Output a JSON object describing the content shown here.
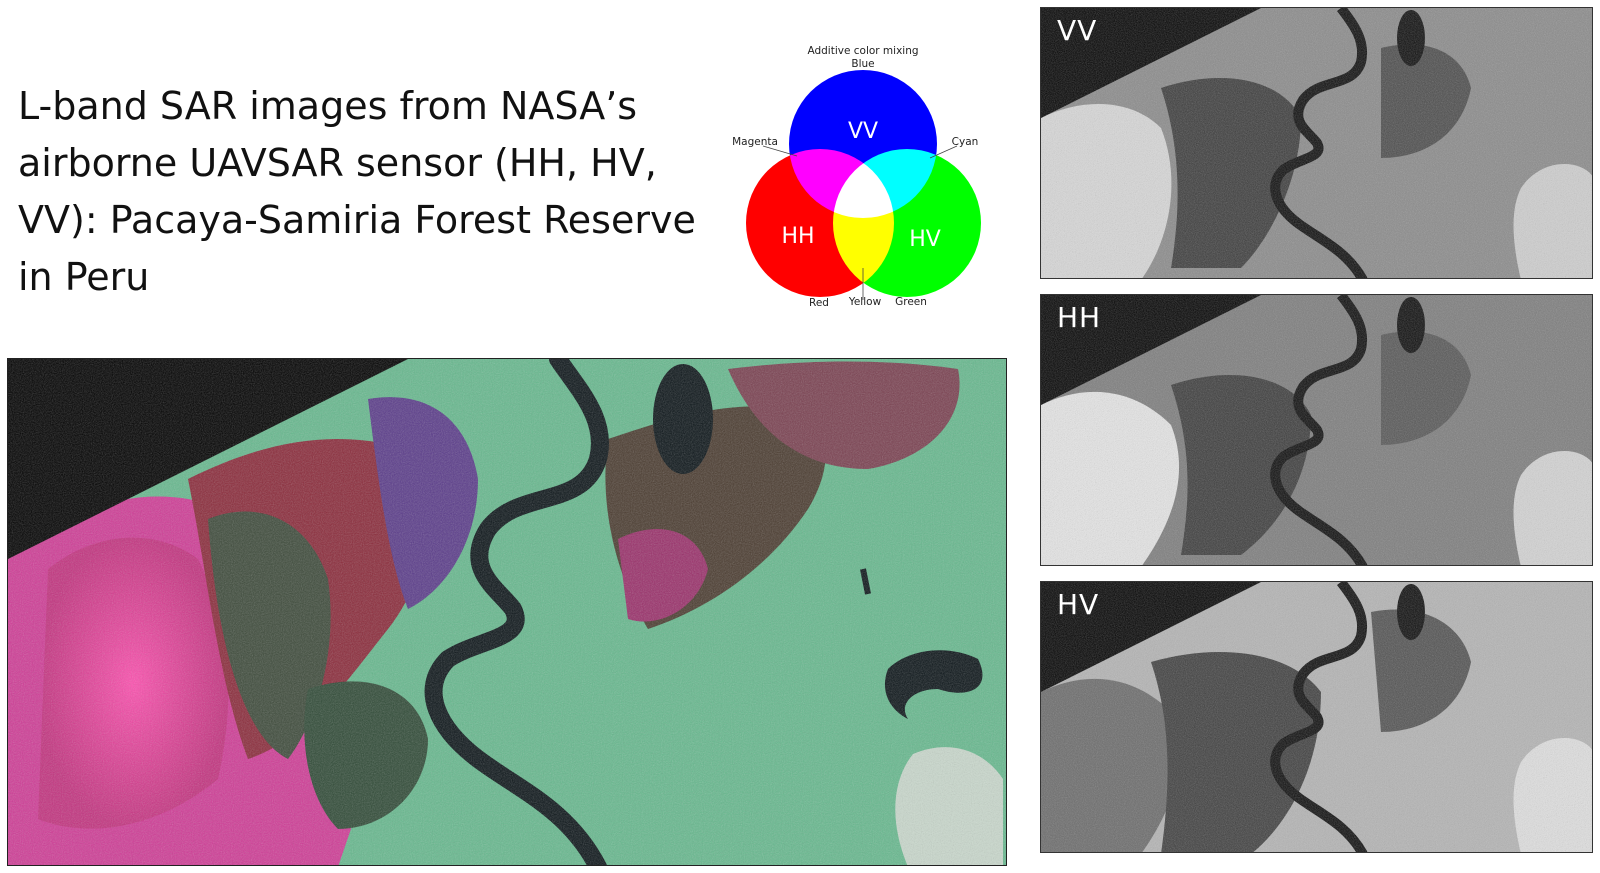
{
  "title": "L-band SAR images from NASA’s airborne UAVSAR sensor (HH, HV, VV): Pacaya-Samiria Forest Reserve in Peru",
  "color_wheel": {
    "heading": "Additive color mixing",
    "circles": [
      {
        "key": "vv",
        "label": "VV",
        "color": "#0000ff",
        "name": "Blue"
      },
      {
        "key": "hh",
        "label": "HH",
        "color": "#ff0000",
        "name": "Red"
      },
      {
        "key": "hv",
        "label": "HV",
        "color": "#00ff00",
        "name": "Green"
      }
    ],
    "mixes": {
      "magenta": "Magenta",
      "cyan": "Cyan",
      "yellow": "Yellow"
    }
  },
  "panels": [
    {
      "label": "VV",
      "tone": "vv"
    },
    {
      "label": "HH",
      "tone": "hh"
    },
    {
      "label": "HV",
      "tone": "hv"
    }
  ],
  "colors": {
    "composite_green": "#5cae83",
    "composite_magenta": "#e8358f",
    "composite_red": "#b02a2a",
    "river": "#0b1418",
    "nodata": "#000000"
  }
}
